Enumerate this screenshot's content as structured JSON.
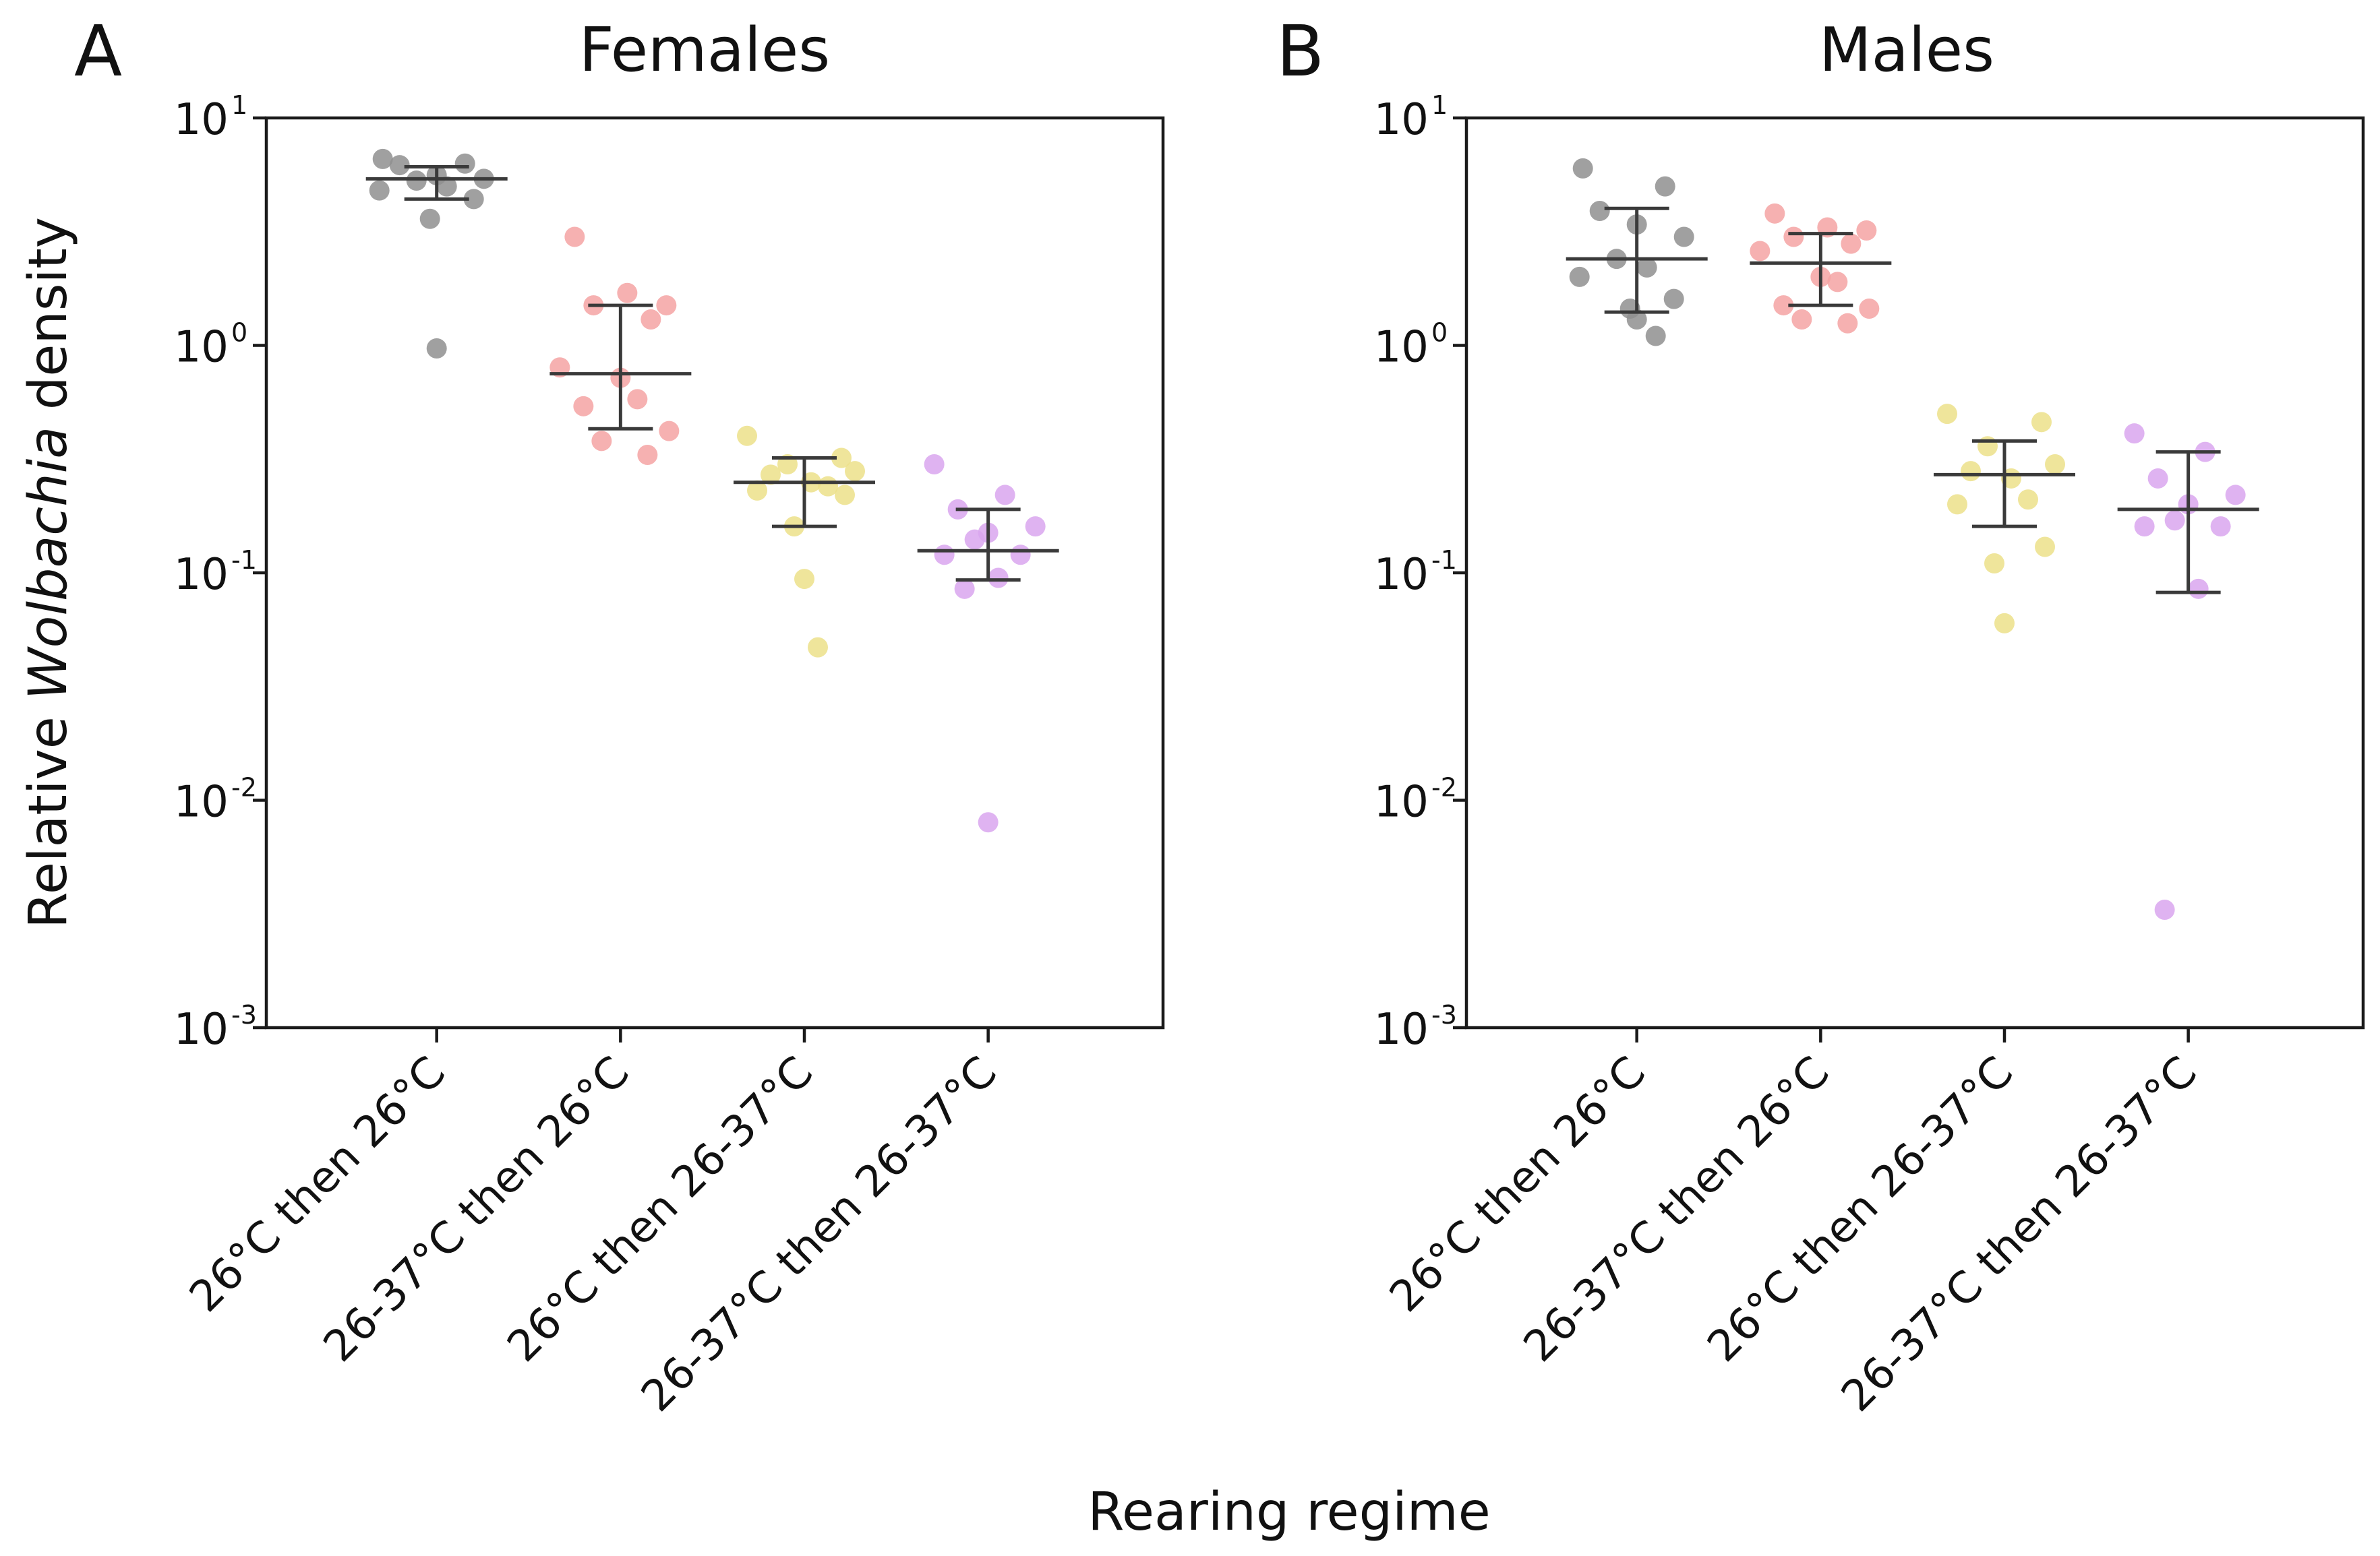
{
  "colors": {
    "axis": "#1a1a1a",
    "errorbar": "#3a3a3a",
    "series": [
      "#8f8f8f",
      "#f5a3a3",
      "#ece089",
      "#d9a6ee"
    ]
  },
  "xlabel": "Rearing regime",
  "ylabel_prefix": "Relative ",
  "ylabel_italic": "Wolbachia",
  "ylabel_suffix": " density",
  "y_ticks": [
    {
      "base": "10",
      "exp": "1"
    },
    {
      "base": "10",
      "exp": "0"
    },
    {
      "base": "10",
      "exp": "-1"
    },
    {
      "base": "10",
      "exp": "-2"
    },
    {
      "base": "10",
      "exp": "-3"
    }
  ],
  "chart_data": [
    {
      "type": "scatter",
      "letter": "A",
      "title": "Females",
      "xlabel": "Rearing regime",
      "ylabel": "Relative Wolbachia density",
      "yscale": "log",
      "ylim": [
        0.001,
        10
      ],
      "categories": [
        "26°C then 26°C",
        "26-37°C then 26°C",
        "26°C then 26-37°C",
        "26-37°C then 26-37°C"
      ],
      "series": [
        {
          "name": "26°C then 26°C",
          "median": 5.4,
          "q1": 4.4,
          "q3": 6.1,
          "points": [
            6.6,
            6.3,
            6.2,
            5.6,
            5.4,
            5.3,
            5.0,
            4.8,
            4.4,
            3.6,
            0.97
          ]
        },
        {
          "name": "26-37°C then 26°C",
          "median": 0.75,
          "q1": 0.43,
          "q3": 1.5,
          "points": [
            3.0,
            1.7,
            1.5,
            1.5,
            1.3,
            0.8,
            0.72,
            0.58,
            0.54,
            0.42,
            0.38,
            0.33
          ]
        },
        {
          "name": "26°C then 26-37°C",
          "median": 0.25,
          "q1": 0.16,
          "q3": 0.32,
          "points": [
            0.4,
            0.32,
            0.3,
            0.28,
            0.27,
            0.25,
            0.24,
            0.23,
            0.22,
            0.16,
            0.094,
            0.047
          ]
        },
        {
          "name": "26-37°C then 26-37°C",
          "median": 0.125,
          "q1": 0.093,
          "q3": 0.19,
          "points": [
            0.3,
            0.22,
            0.19,
            0.16,
            0.15,
            0.14,
            0.12,
            0.12,
            0.095,
            0.085,
            0.008
          ]
        }
      ]
    },
    {
      "type": "scatter",
      "letter": "B",
      "title": "Males",
      "xlabel": "Rearing regime",
      "ylabel": "",
      "yscale": "log",
      "ylim": [
        0.001,
        10
      ],
      "categories": [
        "26°C then 26°C",
        "26-37°C then 26°C",
        "26°C then 26-37°C",
        "26-37°C then 26-37°C"
      ],
      "series": [
        {
          "name": "26°C then 26°C",
          "median": 2.4,
          "q1": 1.4,
          "q3": 4.0,
          "points": [
            6.0,
            5.0,
            3.9,
            3.4,
            3.0,
            2.4,
            2.2,
            2.0,
            1.6,
            1.45,
            1.3,
            1.1
          ]
        },
        {
          "name": "26-37°C then 26°C",
          "median": 2.3,
          "q1": 1.5,
          "q3": 3.1,
          "points": [
            3.8,
            3.3,
            3.2,
            3.0,
            2.8,
            2.6,
            2.0,
            1.9,
            1.5,
            1.45,
            1.3,
            1.25
          ]
        },
        {
          "name": "26°C then 26-37°C",
          "median": 0.27,
          "q1": 0.16,
          "q3": 0.38,
          "points": [
            0.5,
            0.46,
            0.36,
            0.3,
            0.28,
            0.26,
            0.21,
            0.2,
            0.13,
            0.11,
            0.06
          ]
        },
        {
          "name": "26-37°C then 26-37°C",
          "median": 0.19,
          "q1": 0.082,
          "q3": 0.34,
          "points": [
            0.41,
            0.34,
            0.26,
            0.22,
            0.2,
            0.17,
            0.16,
            0.16,
            0.085,
            0.0033
          ]
        }
      ]
    }
  ]
}
